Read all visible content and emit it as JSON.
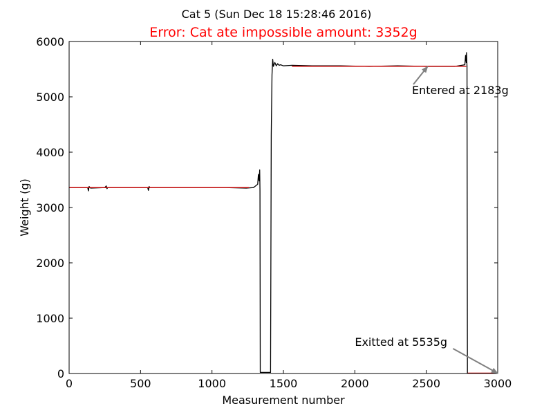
{
  "chart_data": {
    "type": "line",
    "title": "Cat 5 (Sun Dec 18 15:28:46 2016)",
    "subtitle": "Error: Cat ate impossible amount: 3352g",
    "xlabel": "Measurement number",
    "ylabel": "Weight (g)",
    "xlim": [
      0,
      3000
    ],
    "ylim": [
      0,
      6000
    ],
    "xticks": [
      0,
      500,
      1000,
      1500,
      2000,
      2500,
      3000
    ],
    "yticks": [
      0,
      1000,
      2000,
      3000,
      4000,
      5000,
      6000
    ],
    "grid": false,
    "legend": "none",
    "colors": {
      "raw": "#000000",
      "fit": "#cc0000",
      "title": "#000000",
      "subtitle": "#ff0000",
      "arrow": "#808080"
    },
    "series": [
      {
        "x": [
          0,
          130,
          135,
          140,
          150,
          250,
          260,
          265,
          270,
          550,
          555,
          560,
          565,
          1100,
          1240,
          1290,
          1300,
          1320,
          1325,
          1330,
          1334,
          1336,
          1338,
          1345,
          1410,
          1415,
          1420,
          1425,
          1430,
          1440,
          1450,
          1460,
          1470,
          1480,
          1500,
          1560,
          1700,
          1900,
          2100,
          2300,
          2500,
          2700,
          2770,
          2775,
          2780,
          2782,
          2785,
          2788,
          2790,
          2800,
          2850,
          2900,
          3000
        ],
        "y": [
          3360,
          3360,
          3300,
          3380,
          3350,
          3360,
          3390,
          3340,
          3360,
          3360,
          3310,
          3380,
          3360,
          3360,
          3350,
          3360,
          3380,
          3420,
          3600,
          3480,
          3680,
          3300,
          20,
          20,
          20,
          4300,
          5400,
          5680,
          5550,
          5620,
          5560,
          5600,
          5570,
          5580,
          5560,
          5570,
          5560,
          5560,
          5550,
          5560,
          5550,
          5550,
          5580,
          5750,
          5620,
          5800,
          5550,
          0,
          0,
          0,
          0,
          0,
          0
        ]
      },
      {
        "x": [
          0,
          1260
        ],
        "y": [
          3360,
          3360
        ]
      },
      {
        "x": [
          1560,
          2780
        ],
        "y": [
          5553,
          5553
        ]
      },
      {
        "x": [
          2790,
          3000
        ],
        "y": [
          5,
          5
        ]
      }
    ],
    "annotations": [
      {
        "text": "Entered at 2183g",
        "xy": [
          2510,
          5550
        ],
        "xytext": [
          2400,
          5050
        ]
      },
      {
        "text": "Exitted at 5535g",
        "xy": [
          3000,
          5
        ],
        "xytext": [
          2000,
          500
        ]
      }
    ]
  }
}
